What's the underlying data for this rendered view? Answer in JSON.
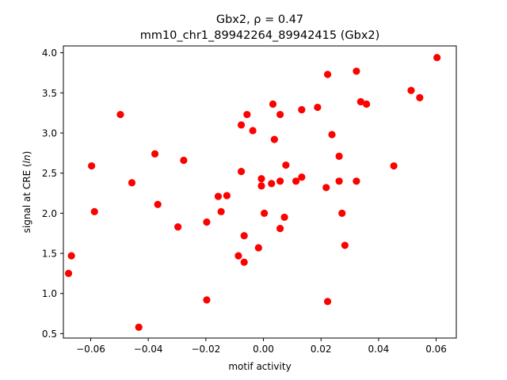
{
  "chart_data": {
    "type": "scatter",
    "title_line1": "Gbx2, ρ = 0.47",
    "title_line2": "mm10_chr1_89942264_89942415 (Gbx2)",
    "xlabel": "motif activity",
    "ylabel_prefix": "signal at CRE (",
    "ylabel_italic": "ln",
    "ylabel_suffix": ")",
    "xlim": [
      -0.0695,
      0.067
    ],
    "ylim": [
      0.445,
      4.085
    ],
    "xticks": [
      -0.06,
      -0.04,
      -0.02,
      0.0,
      0.02,
      0.04,
      0.06
    ],
    "xtick_labels": [
      "−0.06",
      "−0.04",
      "−0.02",
      "0.00",
      "0.02",
      "0.04",
      "0.06"
    ],
    "yticks": [
      0.5,
      1.0,
      1.5,
      2.0,
      2.5,
      3.0,
      3.5,
      4.0
    ],
    "ytick_labels": [
      "0.5",
      "1.0",
      "1.5",
      "2.0",
      "2.5",
      "3.0",
      "3.5",
      "4.0"
    ],
    "grid": false,
    "legend": false,
    "marker_color": "#ff0000",
    "points": [
      {
        "x": -0.0677,
        "y": 1.25
      },
      {
        "x": -0.0667,
        "y": 1.47
      },
      {
        "x": -0.0597,
        "y": 2.59
      },
      {
        "x": -0.0587,
        "y": 2.02
      },
      {
        "x": -0.0497,
        "y": 3.23
      },
      {
        "x": -0.0457,
        "y": 2.38
      },
      {
        "x": -0.0433,
        "y": 0.58
      },
      {
        "x": -0.0377,
        "y": 2.74
      },
      {
        "x": -0.0367,
        "y": 2.11
      },
      {
        "x": -0.0297,
        "y": 1.83
      },
      {
        "x": -0.0277,
        "y": 2.66
      },
      {
        "x": -0.0197,
        "y": 0.92
      },
      {
        "x": -0.0197,
        "y": 1.89
      },
      {
        "x": -0.0157,
        "y": 2.21
      },
      {
        "x": -0.0147,
        "y": 2.02
      },
      {
        "x": -0.0127,
        "y": 2.22
      },
      {
        "x": -0.0087,
        "y": 1.47
      },
      {
        "x": -0.0077,
        "y": 2.52
      },
      {
        "x": -0.0077,
        "y": 3.1
      },
      {
        "x": -0.0067,
        "y": 1.72
      },
      {
        "x": -0.0067,
        "y": 1.39
      },
      {
        "x": -0.0057,
        "y": 3.23
      },
      {
        "x": -0.0037,
        "y": 3.03
      },
      {
        "x": -0.0017,
        "y": 1.57
      },
      {
        "x": -0.0007,
        "y": 2.34
      },
      {
        "x": -0.0007,
        "y": 2.43
      },
      {
        "x": 0.0003,
        "y": 2.0
      },
      {
        "x": 0.0028,
        "y": 2.37
      },
      {
        "x": 0.0033,
        "y": 3.36
      },
      {
        "x": 0.0038,
        "y": 2.92
      },
      {
        "x": 0.0058,
        "y": 3.23
      },
      {
        "x": 0.0058,
        "y": 1.81
      },
      {
        "x": 0.0058,
        "y": 2.4
      },
      {
        "x": 0.0073,
        "y": 1.95
      },
      {
        "x": 0.0078,
        "y": 2.6
      },
      {
        "x": 0.0113,
        "y": 2.4
      },
      {
        "x": 0.0133,
        "y": 2.45
      },
      {
        "x": 0.0133,
        "y": 3.29
      },
      {
        "x": 0.0188,
        "y": 3.32
      },
      {
        "x": 0.0218,
        "y": 2.32
      },
      {
        "x": 0.0223,
        "y": 3.73
      },
      {
        "x": 0.0223,
        "y": 0.9
      },
      {
        "x": 0.0238,
        "y": 2.98
      },
      {
        "x": 0.0263,
        "y": 2.71
      },
      {
        "x": 0.0263,
        "y": 2.4
      },
      {
        "x": 0.0273,
        "y": 2.0
      },
      {
        "x": 0.0283,
        "y": 1.6
      },
      {
        "x": 0.0323,
        "y": 2.4
      },
      {
        "x": 0.0323,
        "y": 3.77
      },
      {
        "x": 0.0338,
        "y": 3.39
      },
      {
        "x": 0.0358,
        "y": 3.36
      },
      {
        "x": 0.0453,
        "y": 2.59
      },
      {
        "x": 0.0513,
        "y": 3.53
      },
      {
        "x": 0.0543,
        "y": 3.44
      },
      {
        "x": 0.0603,
        "y": 3.94
      }
    ]
  }
}
